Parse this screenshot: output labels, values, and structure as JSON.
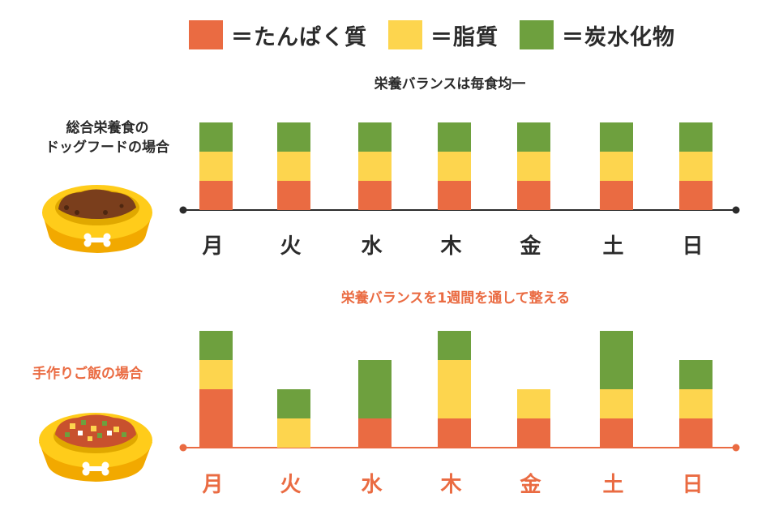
{
  "legend": [
    {
      "label": "＝たんぱく質",
      "color": "#EA6B42"
    },
    {
      "label": "＝脂質",
      "color": "#FDD54E"
    },
    {
      "label": "＝炭水化物",
      "color": "#6EA03E"
    }
  ],
  "panels": {
    "commercial": {
      "title": "栄養バランスは毎食均一",
      "label_lines": [
        "総合栄養食の",
        "ドッグフードの場合"
      ],
      "title_color": "#2b2b2b",
      "axis_color": "#2b2b2b"
    },
    "homemade": {
      "title": "栄養バランスを1週間を通して整える",
      "label_lines": [
        "手作りご飯の場合"
      ],
      "title_color": "#EA6B42",
      "axis_color": "#EA6B42"
    }
  },
  "chart_data": [
    {
      "type": "bar",
      "stacked": true,
      "categories": [
        "月",
        "火",
        "水",
        "木",
        "金",
        "土",
        "日"
      ],
      "series": [
        {
          "name": "たんぱく質",
          "color": "#EA6B42",
          "values": [
            1,
            1,
            1,
            1,
            1,
            1,
            1
          ]
        },
        {
          "name": "脂質",
          "color": "#FDD54E",
          "values": [
            1,
            1,
            1,
            1,
            1,
            1,
            1
          ]
        },
        {
          "name": "炭水化物",
          "color": "#6EA03E",
          "values": [
            1,
            1,
            1,
            1,
            1,
            1,
            1
          ]
        }
      ],
      "ylim": [
        0,
        4
      ]
    },
    {
      "type": "bar",
      "stacked": true,
      "categories": [
        "月",
        "火",
        "水",
        "木",
        "金",
        "土",
        "日"
      ],
      "series": [
        {
          "name": "たんぱく質",
          "color": "#EA6B42",
          "values": [
            2,
            0,
            1,
            1,
            1,
            1,
            1
          ]
        },
        {
          "name": "脂質",
          "color": "#FDD54E",
          "values": [
            1,
            1,
            0,
            2,
            1,
            1,
            1
          ]
        },
        {
          "name": "炭水化物",
          "color": "#6EA03E",
          "values": [
            1,
            1,
            2,
            1,
            0,
            2,
            1
          ]
        }
      ],
      "ylim": [
        0,
        4
      ]
    }
  ]
}
